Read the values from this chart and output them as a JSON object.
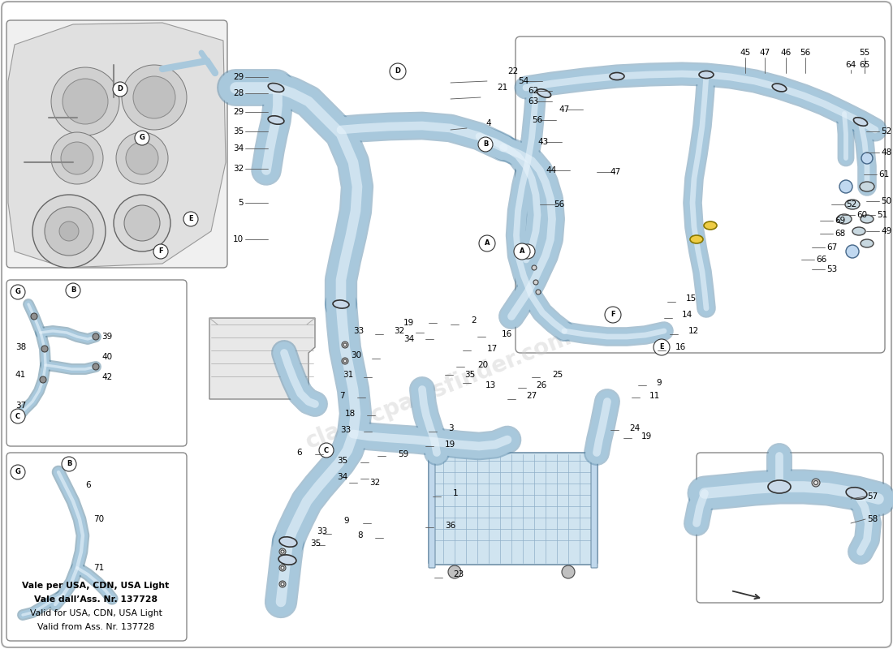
{
  "background_color": "#ffffff",
  "blue_color": "#a8c8dc",
  "blue_dark": "#5a8aaa",
  "blue_light": "#d0e8f4",
  "gray_line": "#888888",
  "black": "#000000",
  "light_gray": "#e8e8e8",
  "note_lines": [
    "Vale per USA, CDN, USA Light",
    "Vale dall’Ass. Nr. 137728",
    "Valid for USA, CDN, USA Light",
    "Valid from Ass. Nr. 137728"
  ],
  "note_bold": [
    true,
    true,
    false,
    false
  ],
  "figsize": [
    11.0,
    8.0
  ],
  "dpi": 100
}
